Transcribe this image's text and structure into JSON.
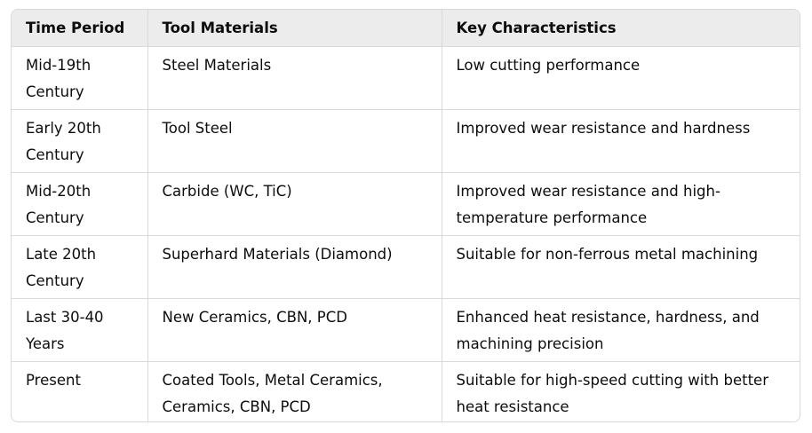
{
  "table": {
    "headers": [
      "Time Period",
      "Tool Materials",
      "Key Characteristics"
    ],
    "rows": [
      [
        "Mid-19th\nCentury",
        "Steel Materials",
        "Low cutting performance"
      ],
      [
        "Early 20th\nCentury",
        "Tool Steel",
        "Improved wear resistance and hardness"
      ],
      [
        "Mid-20th\nCentury",
        "Carbide (WC, TiC)",
        "Improved wear resistance and high-\ntemperature performance"
      ],
      [
        "Late 20th\nCentury",
        "Superhard Materials (Diamond)",
        "Suitable for non-ferrous metal machining"
      ],
      [
        "Last 30-40\nYears",
        "New Ceramics, CBN, PCD",
        "Enhanced heat resistance, hardness, and\nmachining precision"
      ],
      [
        "Present",
        "Coated Tools, Metal Ceramics,\nCeramics, CBN, PCD",
        "Suitable for high-speed cutting with better\nheat resistance"
      ]
    ]
  }
}
